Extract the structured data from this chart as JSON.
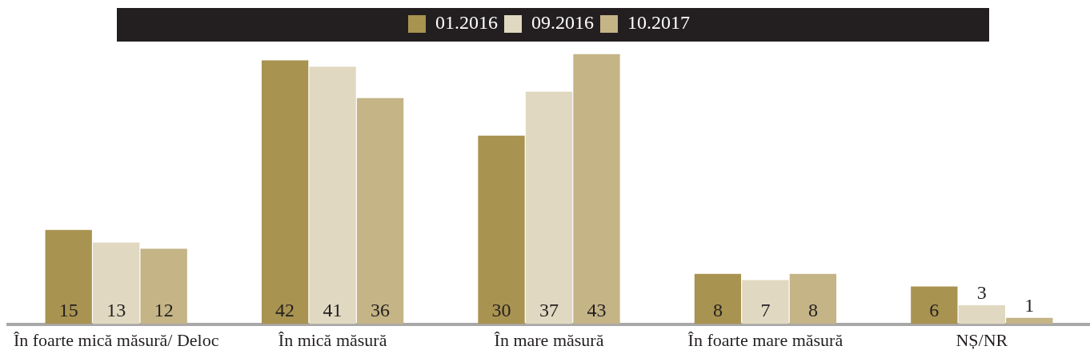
{
  "chart_data": {
    "type": "bar",
    "categories": [
      "În foarte mică măsură/ Deloc",
      "În mică măsură",
      "În mare măsură",
      "În foarte mare măsură",
      "NȘ/NR"
    ],
    "series": [
      {
        "name": "01.2016",
        "color": "#a89350",
        "values": [
          15,
          42,
          30,
          8,
          6
        ]
      },
      {
        "name": "09.2016",
        "color": "#e0d8c0",
        "values": [
          13,
          41,
          37,
          7,
          3
        ]
      },
      {
        "name": "10.2017",
        "color": "#c4b486",
        "values": [
          12,
          36,
          43,
          8,
          1
        ]
      }
    ],
    "data_labels": true,
    "legend": "top",
    "grid": false
  }
}
